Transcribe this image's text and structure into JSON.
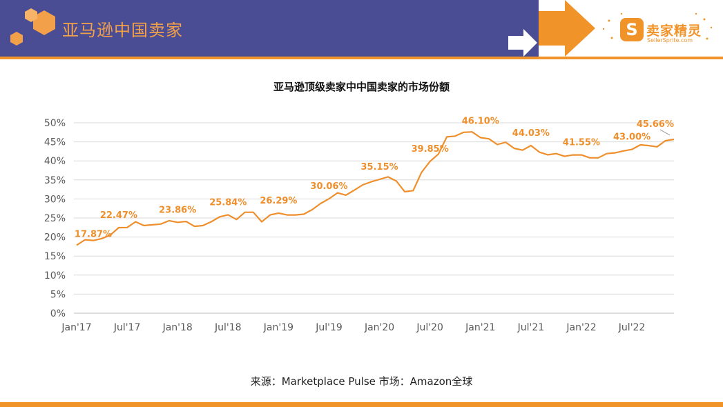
{
  "header": {
    "title": "亚马逊中国卖家"
  },
  "logo": {
    "name": "卖家精灵",
    "subtitle": "SellerSprite.com"
  },
  "colors": {
    "band": "#4a4d93",
    "accent": "#f0942a",
    "line": "#ee8f2c",
    "grid": "#d9d9d9"
  },
  "footer": {
    "source": "来源：Marketplace Pulse    市场：Amazon全球"
  },
  "chart_data": {
    "type": "line",
    "title": "亚马逊顶级卖家中中国卖家的市场份额",
    "xlabel": "",
    "ylabel": "",
    "ylim": [
      0,
      50
    ],
    "ytick_labels": [
      "0%",
      "5%",
      "10%",
      "15%",
      "20%",
      "25%",
      "30%",
      "35%",
      "40%",
      "45%",
      "50%"
    ],
    "xtick_labels": [
      "Jan'17",
      "Jul'17",
      "Jan'18",
      "Jul'18",
      "Jan'19",
      "Jul'19",
      "Jan'20",
      "Jul'20",
      "Jan'21",
      "Jul'21",
      "Jan'22",
      "Jul'22"
    ],
    "x_start": "Jan'17",
    "grid": "horizontal",
    "values": [
      17.87,
      19.3,
      19.1,
      19.6,
      20.5,
      22.47,
      22.5,
      24.0,
      23.0,
      23.2,
      23.4,
      24.3,
      23.86,
      24.1,
      22.8,
      23.0,
      24.0,
      25.3,
      25.84,
      24.6,
      26.5,
      26.5,
      24.0,
      25.8,
      26.29,
      25.8,
      25.8,
      26.0,
      27.2,
      28.8,
      30.06,
      31.6,
      31.0,
      32.3,
      33.7,
      34.5,
      35.15,
      35.8,
      34.7,
      31.9,
      32.2,
      37.0,
      39.85,
      41.8,
      46.3,
      46.5,
      47.5,
      47.6,
      46.1,
      45.8,
      44.3,
      44.9,
      43.3,
      42.8,
      44.03,
      42.3,
      41.6,
      41.9,
      41.2,
      41.55,
      41.55,
      40.8,
      40.8,
      41.9,
      42.1,
      42.6,
      43.0,
      44.2,
      44.0,
      43.7,
      45.3,
      45.66
    ],
    "annotations": [
      {
        "index": 0,
        "label": "17.87%"
      },
      {
        "index": 5,
        "label": "22.47%"
      },
      {
        "index": 12,
        "label": "23.86%"
      },
      {
        "index": 18,
        "label": "25.84%"
      },
      {
        "index": 24,
        "label": "26.29%"
      },
      {
        "index": 30,
        "label": "30.06%"
      },
      {
        "index": 36,
        "label": "35.15%"
      },
      {
        "index": 42,
        "label": "39.85%"
      },
      {
        "index": 48,
        "label": "46.10%"
      },
      {
        "index": 54,
        "label": "44.03%"
      },
      {
        "index": 60,
        "label": "41.55%"
      },
      {
        "index": 66,
        "label": "43.00%"
      },
      {
        "index": 71,
        "label": "45.66%"
      }
    ]
  }
}
